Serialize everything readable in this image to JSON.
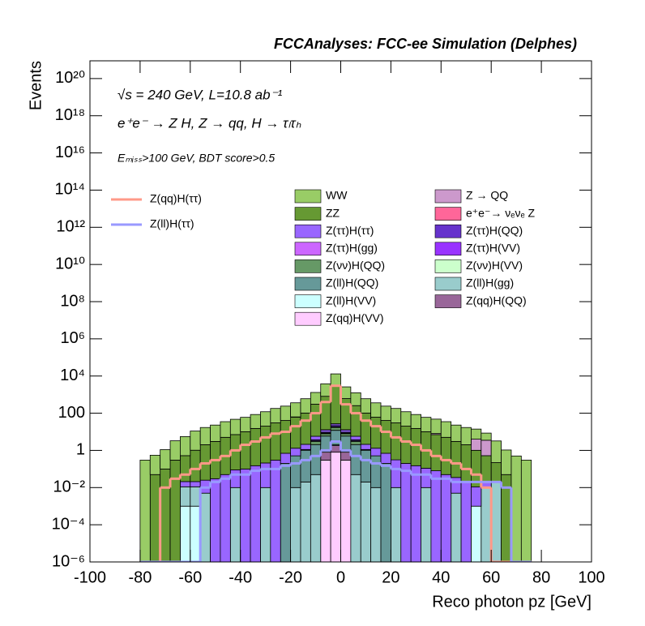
{
  "chart_data": {
    "type": "histogram",
    "title": "FCCAnalyses: FCC-ee Simulation (Delphes)",
    "annotations": [
      "√s = 240 GeV, L=10.8 ab⁻¹",
      "e⁺e⁻ → Z H, Z → qq, H → τₗτₕ",
      "Eₘᵢₛₛ>100 GeV, BDT score>0.5"
    ],
    "x_label": "Reco photon pz [GeV]",
    "y_label": "Events",
    "log_y": true,
    "stacked": true,
    "xlim": [
      -100,
      100
    ],
    "xticks": [
      -100,
      -80,
      -60,
      -40,
      -20,
      0,
      20,
      40,
      60,
      80,
      100
    ],
    "ylim": [
      1e-06,
      9e+20
    ],
    "yticks": [
      {
        "value": 1e-06,
        "label": "10⁻⁶"
      },
      {
        "value": 0.0001,
        "label": "10⁻⁴"
      },
      {
        "value": 0.01,
        "label": "10⁻²"
      },
      1,
      100,
      {
        "value": 10000,
        "label": "10⁴"
      },
      {
        "value": 1000000,
        "label": "10⁶"
      },
      {
        "value": 100000000,
        "label": "10⁸"
      },
      {
        "value": 10000000000.0,
        "label": "10¹⁰"
      },
      {
        "value": 1000000000000.0,
        "label": "10¹²"
      },
      {
        "value": 100000000000000.0,
        "label": "10¹⁴"
      },
      {
        "value": 1e+16,
        "label": "10¹⁶"
      },
      {
        "value": 1e+18,
        "label": "10¹⁸"
      },
      {
        "value": 1e+20,
        "label": "10²⁰"
      }
    ],
    "bins": [
      -80,
      -76,
      -72,
      -68,
      -64,
      -60,
      -56,
      -52,
      -48,
      -44,
      -40,
      -36,
      -32,
      -28,
      -24,
      -20,
      -16,
      -12,
      -8,
      -4,
      0,
      4,
      8,
      12,
      16,
      20,
      24,
      28,
      32,
      36,
      40,
      44,
      48,
      52,
      56,
      60,
      64,
      68,
      72,
      76
    ],
    "series": [
      {
        "name": "Z(qq)H(ττ)",
        "histtype": "step",
        "color": "#ff9988",
        "values": [
          0,
          0,
          0.01,
          0.03,
          0.05,
          0.1,
          0.2,
          0.3,
          0.5,
          1,
          2,
          3,
          5,
          8,
          10,
          20,
          40,
          100,
          400,
          3000,
          300,
          100,
          40,
          20,
          10,
          5,
          3,
          2,
          1,
          0.5,
          0.3,
          0.2,
          0.1,
          0.05,
          0.01,
          0,
          0,
          0,
          0
        ]
      },
      {
        "name": "Z(ll)H(ττ)",
        "histtype": "step",
        "color": "#9999ff",
        "values": [
          0,
          0,
          0,
          0,
          0,
          0,
          0.01,
          0.02,
          0.03,
          0.05,
          0.05,
          0.08,
          0.1,
          0.1,
          0.15,
          0.2,
          0.3,
          0.5,
          1,
          3,
          1,
          0.5,
          0.3,
          0.2,
          0.15,
          0.1,
          0.08,
          0.05,
          0.05,
          0.03,
          0.03,
          0.02,
          0.02,
          0.02,
          0.02,
          0.02,
          0.01,
          0,
          0
        ]
      },
      {
        "name": "WW",
        "histtype": "stepfilled",
        "color": "#99cc66",
        "values": [
          0.3,
          0.5,
          1,
          3,
          5,
          10,
          15,
          20,
          30,
          40,
          50,
          70,
          100,
          150,
          200,
          300,
          500,
          1000,
          3000,
          10000,
          2000,
          1000,
          500,
          300,
          200,
          150,
          100,
          70,
          50,
          40,
          30,
          20,
          15,
          10,
          5,
          3,
          1,
          0.5,
          0.3
        ]
      },
      {
        "name": "Z → QQ",
        "histtype": "stepfilled",
        "color": "#cc99cc",
        "values": [
          0,
          0,
          0,
          0,
          0,
          0,
          0,
          0,
          0,
          0,
          0,
          0,
          0,
          0,
          0,
          2,
          0,
          0,
          0,
          0,
          0,
          0,
          0,
          0,
          0,
          0,
          0,
          0,
          0,
          1,
          0,
          0,
          0,
          3,
          3,
          0,
          0,
          0,
          0
        ]
      },
      {
        "name": "ZZ",
        "histtype": "stepfilled",
        "color": "#669933",
        "values": [
          0,
          0.05,
          0.1,
          0.3,
          0.5,
          1,
          2,
          3,
          5,
          7,
          10,
          15,
          20,
          30,
          40,
          60,
          100,
          300,
          800,
          3000,
          600,
          250,
          100,
          60,
          40,
          30,
          20,
          15,
          10,
          7,
          5,
          3,
          2,
          1,
          0.5,
          0.2,
          0.05,
          0,
          0
        ]
      },
      {
        "name": "e⁺e⁻→ νₑνₑ Z",
        "histtype": "stepfilled",
        "color": "#ff6699",
        "values": [
          0,
          0,
          0,
          0,
          0,
          0,
          0,
          0,
          0,
          0,
          0,
          0,
          0,
          0,
          0,
          0,
          0,
          0,
          0.3,
          0.5,
          0.3,
          0,
          0,
          0,
          0,
          0,
          0,
          0,
          0,
          0,
          0,
          0,
          0,
          0,
          0,
          0,
          0,
          0,
          0
        ]
      },
      {
        "name": "Z(ττ)H(ττ)",
        "histtype": "stepfilled",
        "color": "#9966ff",
        "values": [
          0,
          0,
          0,
          0,
          0.01,
          0.01,
          0.02,
          0.03,
          0.05,
          0.08,
          0.1,
          0.15,
          0.2,
          0.3,
          0.5,
          0.8,
          1,
          2,
          3,
          5,
          3,
          2,
          1,
          0.8,
          0.5,
          0.3,
          0.2,
          0.15,
          0.1,
          0.08,
          0.05,
          0.03,
          0.02,
          0.01,
          0.01,
          0,
          0,
          0,
          0
        ]
      },
      {
        "name": "Z(ττ)H(QQ)",
        "histtype": "stepfilled",
        "color": "#6633cc",
        "values": [
          0,
          0,
          0,
          0,
          0,
          0,
          0,
          0,
          0,
          0,
          0,
          0,
          0,
          0,
          0,
          0,
          0,
          0.5,
          1,
          3,
          1,
          0.5,
          0,
          0,
          0,
          0,
          0,
          0,
          0,
          0,
          0,
          0,
          0,
          0,
          0,
          0,
          0,
          0,
          0
        ]
      },
      {
        "name": "Z(ττ)H(gg)",
        "histtype": "stepfilled",
        "color": "#cc66ff",
        "values": [
          0,
          0,
          0,
          0,
          0,
          0,
          0,
          0,
          0,
          0,
          0,
          0,
          0,
          0,
          0,
          0,
          0,
          0,
          0.2,
          0.5,
          0.2,
          0,
          0,
          0,
          0,
          0,
          0,
          0,
          0,
          0,
          0,
          0,
          0,
          0,
          0,
          0,
          0,
          0,
          0
        ]
      },
      {
        "name": "Z(ττ)H(VV)",
        "histtype": "stepfilled",
        "color": "#9933ff",
        "values": [
          0,
          0,
          0,
          0,
          0,
          0,
          0,
          0,
          0,
          0,
          0,
          0,
          0,
          0,
          0,
          0,
          0.1,
          0.2,
          0.5,
          1,
          0.5,
          0.2,
          0.1,
          0,
          0,
          0,
          0,
          0,
          0,
          0,
          0,
          0,
          0,
          0,
          0,
          0,
          0,
          0,
          0
        ]
      },
      {
        "name": "Z(νν)H(QQ)",
        "histtype": "stepfilled",
        "color": "#669966",
        "values": [
          0,
          0,
          0,
          0,
          0,
          0,
          0,
          0,
          0,
          0,
          0,
          0,
          0,
          0,
          0,
          0,
          0,
          1,
          2,
          5,
          2,
          1,
          0,
          0,
          0,
          0,
          0,
          0,
          0,
          0,
          0,
          0,
          0,
          0,
          0,
          0,
          0,
          0,
          0
        ]
      },
      {
        "name": "Z(νν)H(VV)",
        "histtype": "stepfilled",
        "color": "#ccffcc",
        "values": [
          0,
          0,
          0,
          0,
          0,
          0,
          0,
          0,
          0,
          0,
          0,
          0,
          0,
          0,
          0,
          0,
          0,
          0,
          0,
          0.1,
          0,
          0,
          0,
          0,
          0,
          0,
          0,
          0,
          0,
          0,
          0,
          0,
          0,
          0,
          0,
          0,
          0,
          0,
          0
        ]
      },
      {
        "name": "Z(ll)H(QQ)",
        "histtype": "stepfilled",
        "color": "#669999",
        "values": [
          0,
          0,
          0,
          0,
          0,
          0,
          0,
          0,
          0,
          0,
          0,
          0,
          0,
          0,
          0.2,
          0.5,
          1,
          2,
          5,
          10,
          5,
          2,
          1,
          0.5,
          0.2,
          0,
          0,
          0,
          0,
          0,
          0,
          0,
          0,
          0,
          0,
          0,
          0,
          0,
          0
        ]
      },
      {
        "name": "Z(ll)H(gg)",
        "histtype": "stepfilled",
        "color": "#99cccc",
        "values": [
          0,
          0,
          0,
          0,
          0.01,
          0.01,
          0.005,
          0,
          0,
          0.01,
          0,
          0,
          0.01,
          0,
          0,
          0.01,
          0.02,
          0.05,
          0.1,
          0.2,
          0.1,
          0.05,
          0.02,
          0.01,
          0,
          0.01,
          0,
          0,
          0.01,
          0,
          0,
          0.005,
          0,
          0,
          0.01,
          0.02,
          0,
          0,
          0
        ]
      },
      {
        "name": "Z(ll)H(VV)",
        "histtype": "stepfilled",
        "color": "#ccffff",
        "values": [
          0,
          0,
          0,
          0,
          0.001,
          0.001,
          0,
          0,
          0,
          0,
          0,
          0,
          0,
          0,
          0,
          0,
          0,
          0,
          0,
          0,
          0,
          0,
          0,
          0,
          0,
          0,
          0,
          0,
          0,
          0,
          0,
          0,
          0,
          0.001,
          0,
          0,
          0,
          0,
          0
        ]
      },
      {
        "name": "Z(qq)H(QQ)",
        "histtype": "stepfilled",
        "color": "#996699",
        "values": [
          0,
          0,
          0,
          0,
          0,
          0,
          0,
          0,
          0,
          0,
          0,
          0,
          0,
          0,
          0,
          0,
          0,
          0,
          0.5,
          1,
          0.5,
          0,
          0,
          0,
          0,
          0,
          0,
          0,
          0,
          0,
          0,
          0,
          0,
          0,
          0,
          0,
          0,
          0,
          0
        ]
      },
      {
        "name": "Z(qq)H(VV)",
        "histtype": "stepfilled",
        "color": "#ffccff",
        "values": [
          0,
          0,
          0,
          0,
          0,
          0,
          0,
          0,
          0,
          0,
          0,
          0,
          0,
          0,
          0,
          0,
          0,
          0,
          0.3,
          0.8,
          0.3,
          0,
          0,
          0,
          0,
          0,
          0,
          0,
          0,
          0,
          0,
          0,
          0,
          0,
          0,
          0,
          0,
          0,
          0
        ]
      }
    ]
  }
}
